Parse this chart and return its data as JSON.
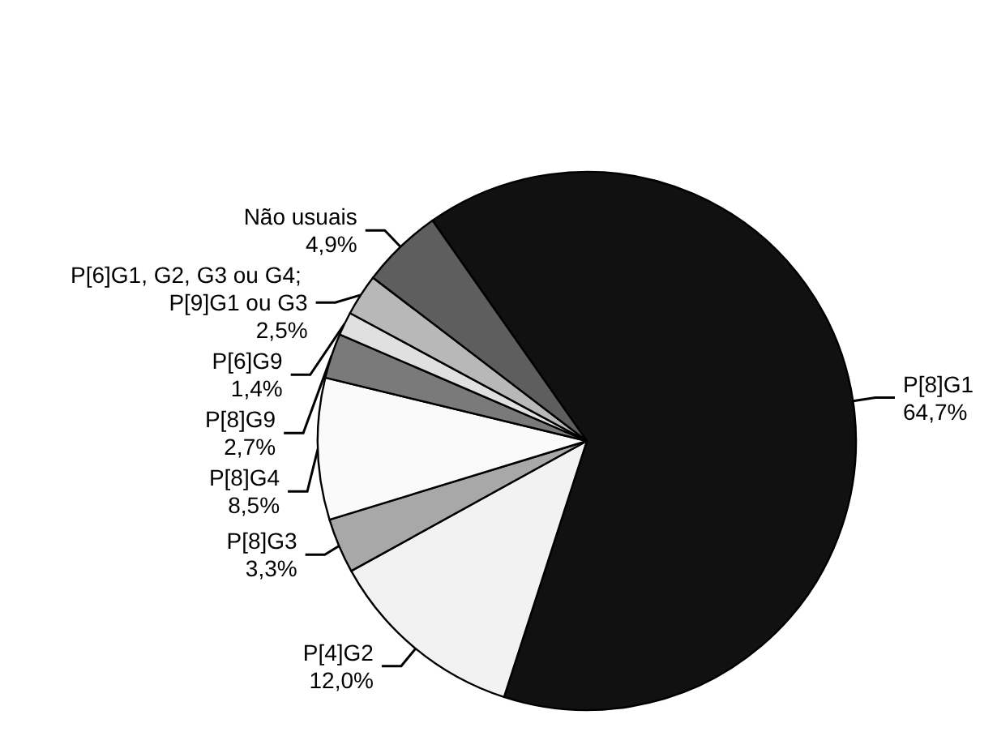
{
  "chart_data": {
    "type": "pie",
    "categories": [
      "P[8]G1",
      "P[4]G2",
      "P[8]G3",
      "P[8]G4",
      "P[8]G9",
      "P[6]G9",
      "P[6]G1, G2, G3 ou G4; P[9]G1 ou G3",
      "Não usuais"
    ],
    "values": [
      64.7,
      12.0,
      3.3,
      8.5,
      2.7,
      1.4,
      2.5,
      4.9
    ],
    "value_labels": [
      "64,7%",
      "12,0%",
      "3,3%",
      "8,5%",
      "2,7%",
      "1,4%",
      "2,5%",
      "4,9%"
    ],
    "colors": [
      "#111111",
      "#f2f2f2",
      "#a8a8a8",
      "#fafafa",
      "#7a7a7a",
      "#e0e0e0",
      "#b8b8b8",
      "#5e5e5e"
    ]
  }
}
